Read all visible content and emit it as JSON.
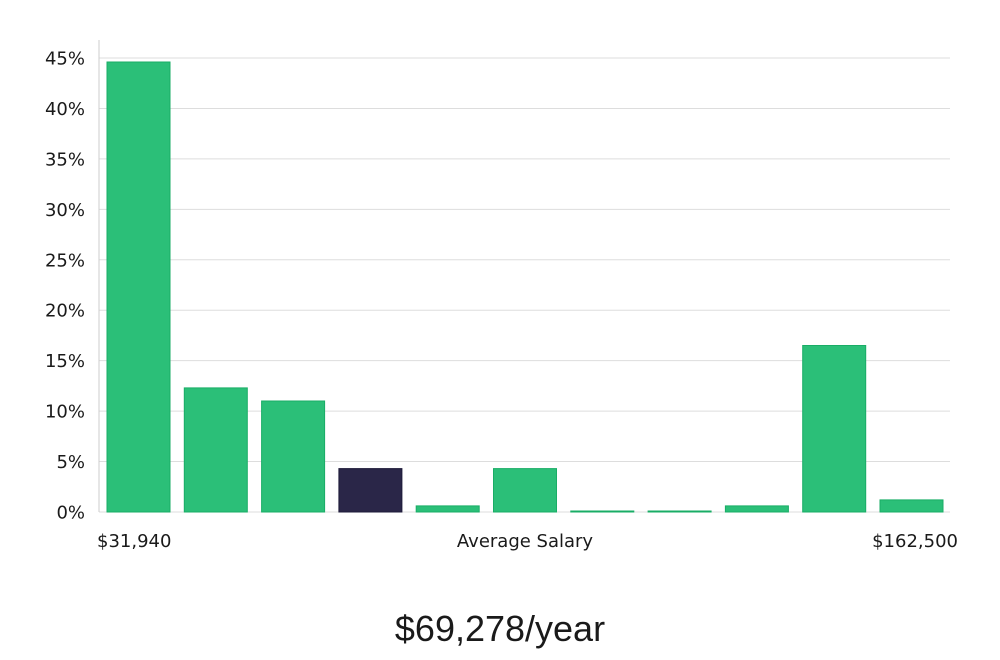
{
  "chart_data": {
    "type": "bar",
    "title": "",
    "xlabel": "Average Salary",
    "ylabel": "",
    "x_min_label": "$31,940",
    "x_max_label": "$162,500",
    "y_ticks": [
      "0%",
      "5%",
      "10%",
      "15%",
      "20%",
      "25%",
      "30%",
      "35%",
      "40%",
      "45%"
    ],
    "ylim": [
      0,
      45
    ],
    "grid": true,
    "values": [
      44.6,
      12.3,
      11.0,
      4.3,
      0.6,
      4.3,
      0.05,
      0.05,
      0.6,
      16.5,
      1.2
    ],
    "highlight_index": 3,
    "colors": {
      "bar": "#2bbf78",
      "bar_stroke": "#19ad66",
      "highlight": "#2a2648",
      "grid": "#dddddd",
      "axis": "#cccccc"
    }
  },
  "summary": {
    "salary_text": "$69,278/year"
  }
}
